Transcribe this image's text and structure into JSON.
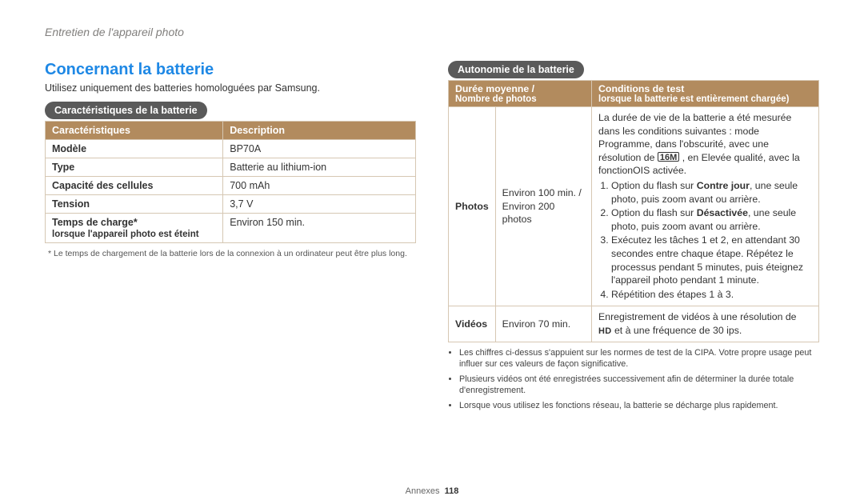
{
  "breadcrumb": "Entretien de l'appareil photo",
  "section_title": "Concernant la batterie",
  "intro": "Utilisez uniquement des batteries homologuées par Samsung.",
  "footer_label": "Annexes",
  "footer_page": "118",
  "colors": {
    "accent": "#1e88e5",
    "table_header": "#b28b5e",
    "pill": "#5a5a5a",
    "border": "#d6c7b3"
  },
  "specs": {
    "pill": "Caractéristiques de la batterie",
    "head_left": "Caractéristiques",
    "head_right": "Description",
    "rows": [
      {
        "k": "Modèle",
        "v": "BP70A"
      },
      {
        "k": "Type",
        "v": "Batterie au lithium-ion"
      },
      {
        "k": "Capacité des cellules",
        "v": "700 mAh"
      },
      {
        "k": "Tension",
        "v": "3,7 V"
      },
      {
        "k": "Temps de charge*",
        "ksub": "lorsque l'appareil photo est éteint",
        "v": "Environ 150 min."
      }
    ],
    "footnote": "* Le temps de chargement de la batterie lors de la connexion à un ordinateur peut être plus long."
  },
  "autonomy": {
    "pill": "Autonomie de la batterie",
    "head_left": "Durée moyenne /",
    "head_left_sub": "Nombre de photos",
    "head_right": "Conditions de test",
    "head_right_sub": "lorsque la batterie est entièrement chargée)",
    "photos": {
      "k": "Photos",
      "m": "Environ 100 min. / Environ 200 photos",
      "desc_intro_a": "La durée de vie de la batterie a été mesurée dans les conditions suivantes : mode Programme, dans l'obscurité, avec une résolution de ",
      "desc_intro_icon": "16M",
      "desc_intro_b": " , en Elevée qualité, avec la fonctionOIS activée.",
      "steps": [
        "Option du flash sur <b>Contre jour</b>, une seule photo, puis zoom avant ou arrière.",
        "Option du flash sur <b>Désactivée</b>, une seule photo, puis zoom avant ou arrière.",
        "Exécutez les tâches 1 et 2, en attendant 30 secondes entre chaque étape. Répétez le processus pendant 5 minutes, puis éteignez l'appareil photo pendant 1 minute.",
        "Répétition des étapes 1 à 3."
      ]
    },
    "videos": {
      "k": "Vidéos",
      "m": "Environ 70 min.",
      "desc_a": "Enregistrement de vidéos à une résolution de ",
      "hd": "HD",
      "desc_b": " et à une fréquence de 30 ips."
    },
    "bullets": [
      "Les chiffres ci-dessus s'appuient sur les normes de test de la CIPA. Votre propre usage peut influer sur ces valeurs de façon significative.",
      "Plusieurs vidéos ont été enregistrées successivement afin de déterminer la durée totale d'enregistrement.",
      "Lorsque vous utilisez les fonctions réseau, la batterie se décharge plus rapidement."
    ]
  }
}
